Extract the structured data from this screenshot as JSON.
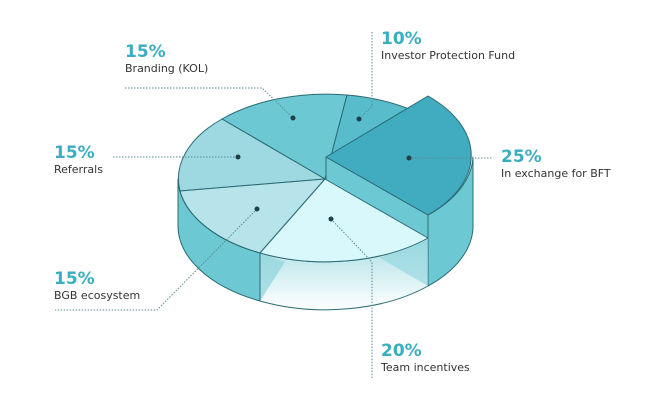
{
  "chart_data": {
    "type": "pie",
    "style": "3d-exploded",
    "slices": [
      {
        "label": "Branding (KOL)",
        "value": 15,
        "value_label": "15%",
        "color": "#6cc8d3"
      },
      {
        "label": "Investor Protection Fund",
        "value": 10,
        "value_label": "10%",
        "color": "#58bccb"
      },
      {
        "label": "In exchange for BFT",
        "value": 25,
        "value_label": "25%",
        "color": "#41abc0",
        "exploded": true
      },
      {
        "label": "Team incentives",
        "value": 20,
        "value_label": "20%",
        "color": "#d9f8fc"
      },
      {
        "label": "BGB ecosystem",
        "value": 15,
        "value_label": "15%",
        "color": "#b7e3ea"
      },
      {
        "label": "Referrals",
        "value": 15,
        "value_label": "15%",
        "color": "#9ed9e2"
      }
    ],
    "label_color": "#3aaebf",
    "side_color": "#6cc8d3",
    "outline_color": "#2b6b73"
  }
}
